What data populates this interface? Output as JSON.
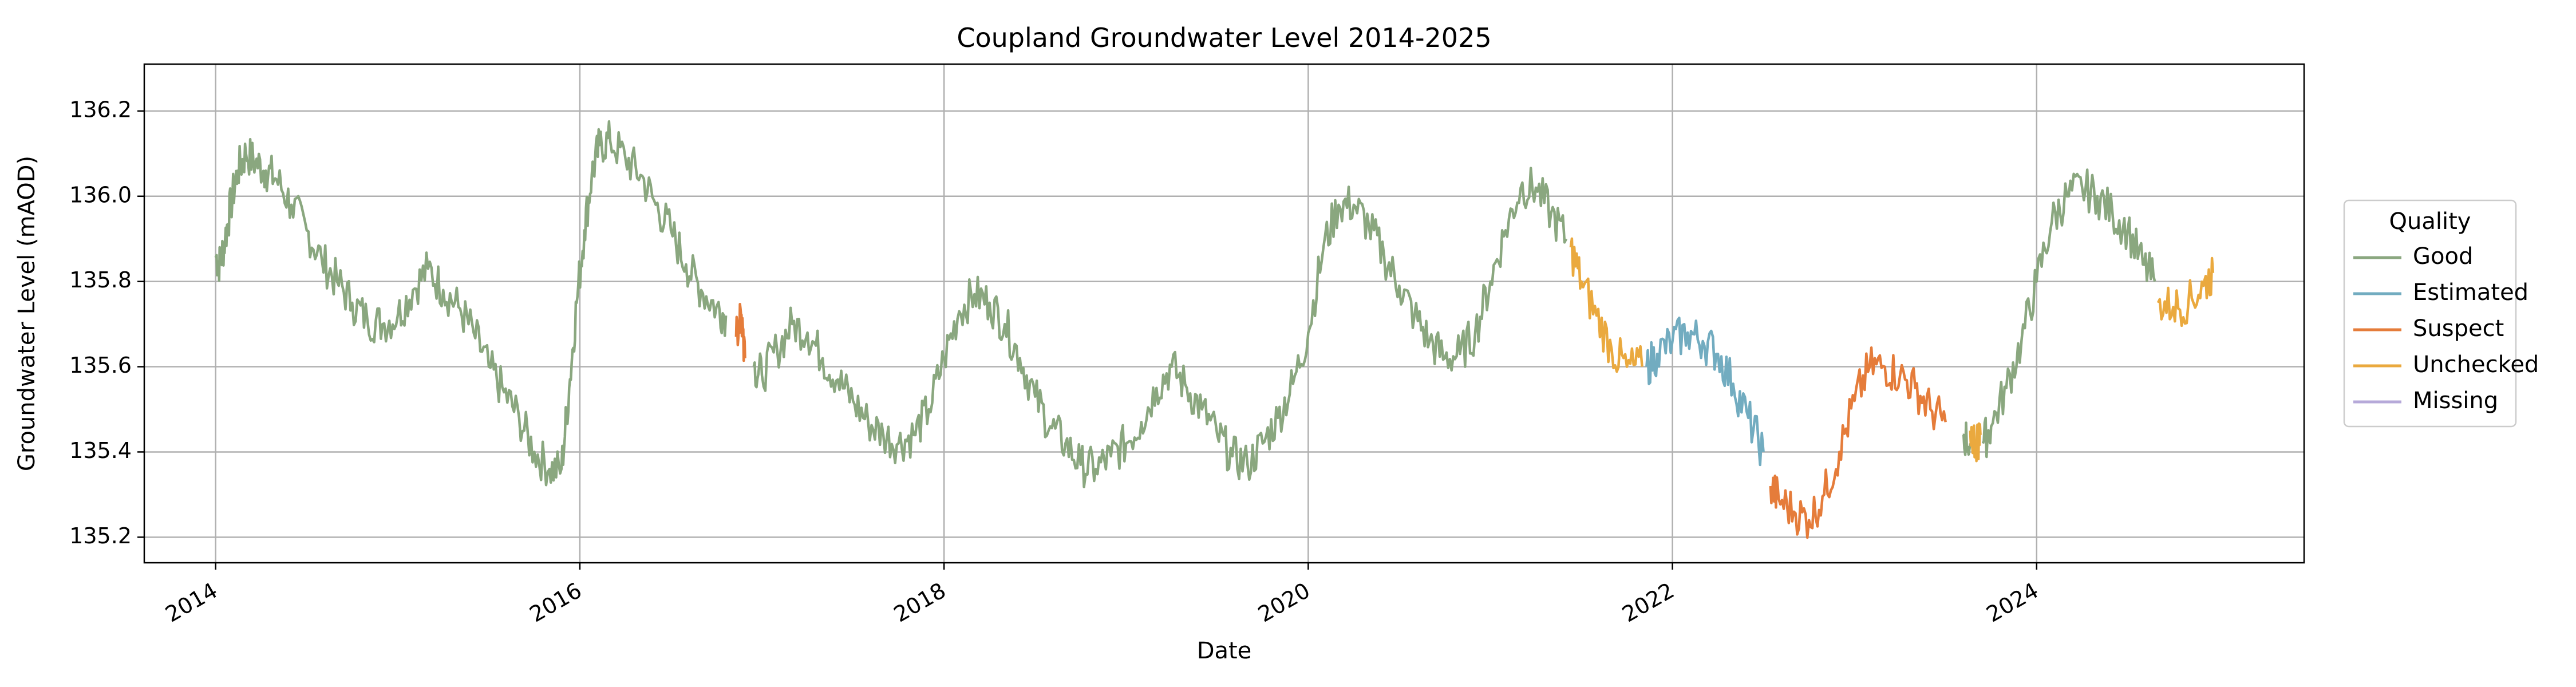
{
  "chart_data": {
    "type": "line",
    "title": "Coupland Groundwater Level 2014-2025",
    "xlabel": "Date",
    "ylabel": "Groundwater Level (mAOD)",
    "xlim": [
      "2013-08-10",
      "2025-06-20"
    ],
    "ylim": [
      135.14,
      136.31
    ],
    "x_ticks": [
      "2014",
      "2016",
      "2018",
      "2020",
      "2022",
      "2024"
    ],
    "y_ticks": [
      "135.2",
      "135.4",
      "135.6",
      "135.8",
      "136.0",
      "136.2"
    ],
    "grid": true,
    "legend": {
      "title": "Quality",
      "placement": "outside-right"
    },
    "series": [
      {
        "name": "Good",
        "color": "#8aa77f",
        "values": [
          [
            "2014-01-01",
            135.86
          ],
          [
            "2014-01-10",
            135.84
          ],
          [
            "2014-01-20",
            135.9
          ],
          [
            "2014-02-01",
            135.98
          ],
          [
            "2014-02-15",
            136.06
          ],
          [
            "2014-03-01",
            136.1
          ],
          [
            "2014-03-20",
            136.08
          ],
          [
            "2014-04-10",
            136.06
          ],
          [
            "2014-05-01",
            136.04
          ],
          [
            "2014-06-01",
            135.98
          ],
          [
            "2014-07-01",
            135.92
          ],
          [
            "2014-08-01",
            135.85
          ],
          [
            "2014-09-01",
            135.8
          ],
          [
            "2014-10-01",
            135.75
          ],
          [
            "2014-11-01",
            135.71
          ],
          [
            "2014-12-01",
            135.7
          ],
          [
            "2015-01-01",
            135.72
          ],
          [
            "2015-02-01",
            135.78
          ],
          [
            "2015-03-01",
            135.83
          ],
          [
            "2015-04-01",
            135.78
          ],
          [
            "2015-05-01",
            135.74
          ],
          [
            "2015-06-01",
            135.68
          ],
          [
            "2015-07-01",
            135.6
          ],
          [
            "2015-08-01",
            135.54
          ],
          [
            "2015-09-01",
            135.48
          ],
          [
            "2015-10-01",
            135.4
          ],
          [
            "2015-11-01",
            135.36
          ],
          [
            "2015-11-25",
            135.36
          ],
          [
            "2015-12-10",
            135.55
          ],
          [
            "2015-12-25",
            135.75
          ],
          [
            "2016-01-10",
            135.92
          ],
          [
            "2016-01-25",
            136.05
          ],
          [
            "2016-02-10",
            136.12
          ],
          [
            "2016-03-01",
            136.13
          ],
          [
            "2016-04-01",
            136.09
          ],
          [
            "2016-05-01",
            136.05
          ],
          [
            "2016-06-01",
            135.98
          ],
          [
            "2016-07-01",
            135.92
          ],
          [
            "2016-08-01",
            135.84
          ],
          [
            "2016-09-01",
            135.78
          ],
          [
            "2016-10-01",
            135.74
          ],
          [
            "2016-10-20",
            135.72
          ],
          null,
          [
            "2016-12-15",
            135.6
          ],
          [
            "2017-01-01",
            135.58
          ],
          [
            "2017-02-01",
            135.64
          ],
          [
            "2017-03-01",
            135.7
          ],
          [
            "2017-04-01",
            135.68
          ],
          [
            "2017-05-01",
            135.62
          ],
          [
            "2017-06-01",
            135.57
          ],
          [
            "2017-07-01",
            135.52
          ],
          [
            "2017-08-01",
            135.47
          ],
          [
            "2017-09-01",
            135.44
          ],
          [
            "2017-10-01",
            135.42
          ],
          [
            "2017-11-01",
            135.44
          ],
          [
            "2017-12-01",
            135.5
          ],
          [
            "2018-01-01",
            135.62
          ],
          [
            "2018-02-01",
            135.73
          ],
          [
            "2018-03-01",
            135.77
          ],
          [
            "2018-04-01",
            135.75
          ],
          [
            "2018-05-01",
            135.7
          ],
          [
            "2018-06-01",
            135.62
          ],
          [
            "2018-07-01",
            135.53
          ],
          [
            "2018-08-01",
            135.46
          ],
          [
            "2018-09-01",
            135.42
          ],
          [
            "2018-10-01",
            135.37
          ],
          [
            "2018-11-01",
            135.36
          ],
          [
            "2018-12-01",
            135.39
          ],
          [
            "2019-01-01",
            135.42
          ],
          [
            "2019-02-01",
            135.47
          ],
          [
            "2019-03-01",
            135.55
          ],
          [
            "2019-04-01",
            135.6
          ],
          [
            "2019-05-01",
            135.55
          ],
          [
            "2019-06-01",
            135.5
          ],
          [
            "2019-07-01",
            135.44
          ],
          [
            "2019-08-01",
            135.39
          ],
          [
            "2019-09-01",
            135.37
          ],
          [
            "2019-10-01",
            135.42
          ],
          [
            "2019-11-01",
            135.48
          ],
          [
            "2019-12-01",
            135.56
          ],
          [
            "2020-01-01",
            135.68
          ],
          [
            "2020-02-01",
            135.88
          ],
          [
            "2020-03-01",
            135.98
          ],
          [
            "2020-04-01",
            135.98
          ],
          [
            "2020-05-01",
            135.93
          ],
          [
            "2020-06-01",
            135.86
          ],
          [
            "2020-07-01",
            135.79
          ],
          [
            "2020-08-01",
            135.72
          ],
          [
            "2020-09-01",
            135.66
          ],
          [
            "2020-10-01",
            135.62
          ],
          [
            "2020-11-01",
            135.63
          ],
          [
            "2020-12-01",
            135.68
          ],
          [
            "2021-01-01",
            135.8
          ],
          [
            "2021-02-01",
            135.92
          ],
          [
            "2021-03-01",
            136.02
          ],
          [
            "2021-04-01",
            136.02
          ],
          [
            "2021-05-01",
            135.96
          ],
          [
            "2021-06-01",
            135.9
          ],
          null,
          [
            "2023-08-05",
            135.44
          ],
          [
            "2023-08-20",
            135.42
          ],
          null,
          [
            "2023-09-15",
            135.42
          ],
          [
            "2023-10-01",
            135.46
          ],
          [
            "2023-11-01",
            135.55
          ],
          [
            "2023-12-01",
            135.66
          ],
          [
            "2024-01-01",
            135.8
          ],
          [
            "2024-02-01",
            135.94
          ],
          [
            "2024-03-01",
            136.0
          ],
          [
            "2024-04-01",
            136.02
          ],
          [
            "2024-05-01",
            136.0
          ],
          [
            "2024-06-01",
            135.96
          ],
          [
            "2024-07-01",
            135.92
          ],
          [
            "2024-08-01",
            135.84
          ],
          [
            "2024-08-25",
            135.8
          ]
        ]
      },
      {
        "name": "Estimated",
        "color": "#72acc0",
        "values": [
          [
            "2021-11-10",
            135.6
          ],
          [
            "2021-12-01",
            135.63
          ],
          [
            "2022-01-01",
            135.66
          ],
          [
            "2022-02-01",
            135.68
          ],
          [
            "2022-03-01",
            135.66
          ],
          [
            "2022-04-01",
            135.63
          ],
          [
            "2022-05-01",
            135.56
          ],
          [
            "2022-06-01",
            135.48
          ],
          [
            "2022-07-01",
            135.4
          ]
        ]
      },
      {
        "name": "Suspect",
        "color": "#e57c3a",
        "values": [
          [
            "2016-11-10",
            135.67
          ],
          [
            "2016-11-20",
            135.72
          ],
          [
            "2016-11-28",
            135.62
          ],
          null,
          [
            "2022-07-15",
            135.32
          ],
          [
            "2022-08-01",
            135.29
          ],
          [
            "2022-09-01",
            135.26
          ],
          [
            "2022-10-01",
            135.24
          ],
          [
            "2022-11-01",
            135.3
          ],
          [
            "2022-12-01",
            135.4
          ],
          [
            "2023-01-01",
            135.52
          ],
          [
            "2023-02-01",
            135.6
          ],
          [
            "2023-03-01",
            135.6
          ],
          [
            "2023-04-01",
            135.58
          ],
          [
            "2023-05-01",
            135.55
          ],
          [
            "2023-06-01",
            135.5
          ],
          [
            "2023-07-01",
            135.47
          ]
        ]
      },
      {
        "name": "Unchecked",
        "color": "#eaa93e",
        "values": [
          [
            "2021-06-10",
            135.88
          ],
          [
            "2021-07-01",
            135.8
          ],
          [
            "2021-08-01",
            135.72
          ],
          [
            "2021-09-01",
            135.64
          ],
          [
            "2021-10-01",
            135.6
          ],
          [
            "2021-11-01",
            135.6
          ],
          null,
          [
            "2023-08-20",
            135.45
          ],
          [
            "2023-09-01",
            135.42
          ],
          [
            "2023-09-10",
            135.44
          ],
          null,
          [
            "2024-09-01",
            135.75
          ],
          [
            "2024-10-01",
            135.74
          ],
          [
            "2024-11-01",
            135.75
          ],
          [
            "2024-12-01",
            135.79
          ],
          [
            "2024-12-20",
            135.82
          ]
        ]
      },
      {
        "name": "Missing",
        "color": "#b6a9d9",
        "values": []
      }
    ]
  }
}
